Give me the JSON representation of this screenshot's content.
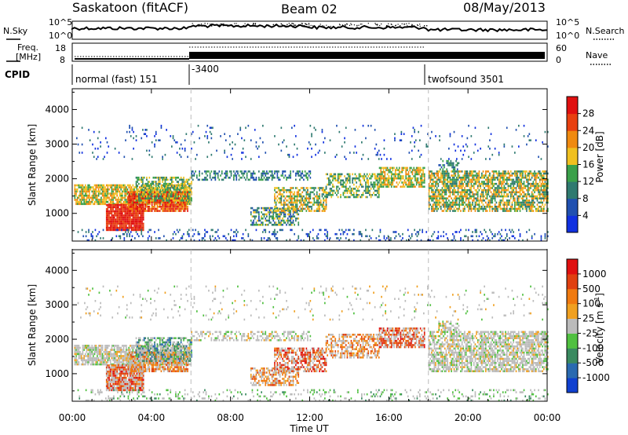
{
  "header": {
    "station": "Saskatoon (fitACF)",
    "beam": "Beam 02",
    "date": "08/May/2013"
  },
  "nsky": {
    "label": "N.Sky",
    "right_label": "N.Search",
    "left_ticks": [
      "10^5",
      "10^0"
    ],
    "right_ticks": [
      "10^5",
      "10^0"
    ]
  },
  "freq": {
    "label_line1": "Freq.",
    "label_line2": "[MHz]",
    "right_label": "Nave",
    "left_ticks": [
      "18",
      "8"
    ],
    "right_ticks": [
      "60",
      "0"
    ]
  },
  "cpid": {
    "label": "CPID",
    "segments": [
      {
        "label": "normal (fast) 151",
        "start_hour": 0
      },
      {
        "label": "-3400",
        "start_hour": 6
      },
      {
        "label": "twofsound 3501",
        "start_hour": 18
      }
    ]
  },
  "chart_data": [
    {
      "type": "heatmap",
      "name": "power",
      "ylabel": "Slant Range [km]",
      "xlabel": "Time UT",
      "xlim_hours": [
        0,
        24
      ],
      "ylim": [
        200,
        4600
      ],
      "yticks": [
        "1000",
        "2000",
        "3000",
        "4000"
      ],
      "xticks": [
        "00:00",
        "04:00",
        "08:00",
        "12:00",
        "16:00",
        "20:00",
        "00:00"
      ],
      "colorbar": {
        "label": "Power [dB]",
        "ticks": [
          "4",
          "8",
          "12",
          "16",
          "20",
          "24",
          "28"
        ],
        "colors": [
          "#1030e0",
          "#2050b0",
          "#2f7a70",
          "#3aa04a",
          "#f0c020",
          "#f08a10",
          "#e84010",
          "#e01010"
        ]
      }
    },
    {
      "type": "heatmap",
      "name": "velocity",
      "ylabel": "Slant Range [km]",
      "xlabel": "Time UT",
      "xlim_hours": [
        0,
        24
      ],
      "ylim": [
        200,
        4600
      ],
      "yticks": [
        "1000",
        "2000",
        "3000",
        "4000"
      ],
      "xticks": [
        "00:00",
        "04:00",
        "08:00",
        "12:00",
        "16:00",
        "20:00",
        "00:00"
      ],
      "colorbar": {
        "label": "Velocity [m s",
        "label_exp": "-1",
        "label_end": "]",
        "ticks": [
          "1000",
          "500",
          "100",
          "25",
          "-25",
          "-100",
          "-500",
          "-1000"
        ],
        "colors": [
          "#1040d0",
          "#2a6ab0",
          "#3a8a60",
          "#50c040",
          "#bbbbbb",
          "#f0a020",
          "#f07a10",
          "#e04010",
          "#e01010"
        ]
      }
    }
  ],
  "xaxis": {
    "label": "Time UT",
    "ticks": [
      "00:00",
      "04:00",
      "08:00",
      "12:00",
      "16:00",
      "20:00",
      "00:00"
    ]
  }
}
